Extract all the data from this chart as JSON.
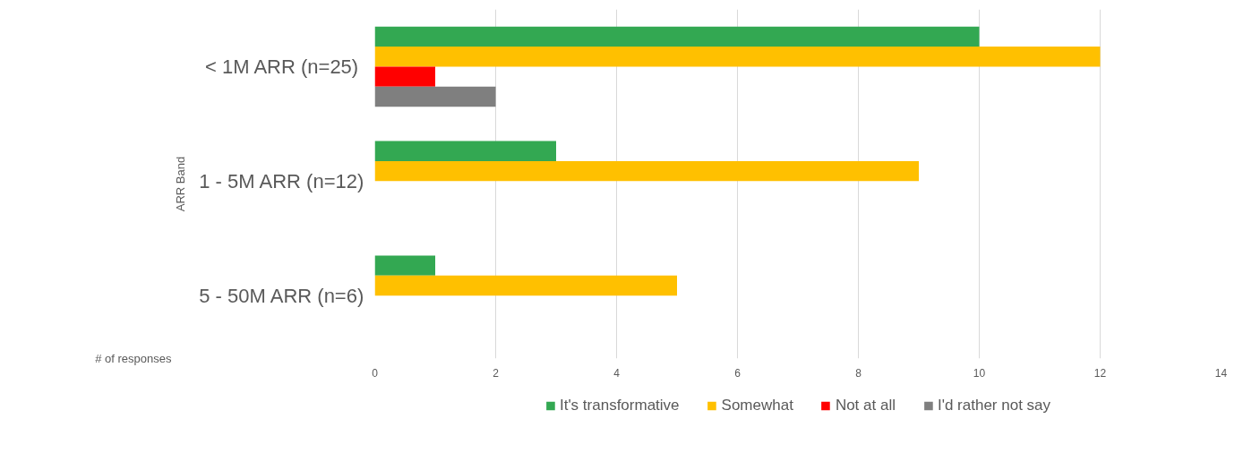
{
  "chart_data": {
    "type": "bar",
    "orientation": "horizontal",
    "ylabel": "ARR Band",
    "xlabel": "# of responses",
    "categories": [
      "<  1M ARR (n=25)",
      "1 - 5M ARR (n=12)",
      "5 - 50M ARR (n=6)"
    ],
    "series": [
      {
        "name": "It's transformative",
        "color": "#33a852",
        "values": [
          10,
          3,
          1
        ]
      },
      {
        "name": "Somewhat",
        "color": "#ffc000",
        "values": [
          12,
          9,
          5
        ]
      },
      {
        "name": "Not at all",
        "color": "#ff0000",
        "values": [
          1,
          0,
          0
        ]
      },
      {
        "name": "I'd rather not say",
        "color": "#7f7f7f",
        "values": [
          2,
          0,
          0
        ]
      }
    ],
    "xlim": [
      0,
      14
    ],
    "xticks": [
      0,
      2,
      4,
      6,
      8,
      10,
      12,
      14
    ],
    "grid": "x",
    "legend": "bottom"
  }
}
